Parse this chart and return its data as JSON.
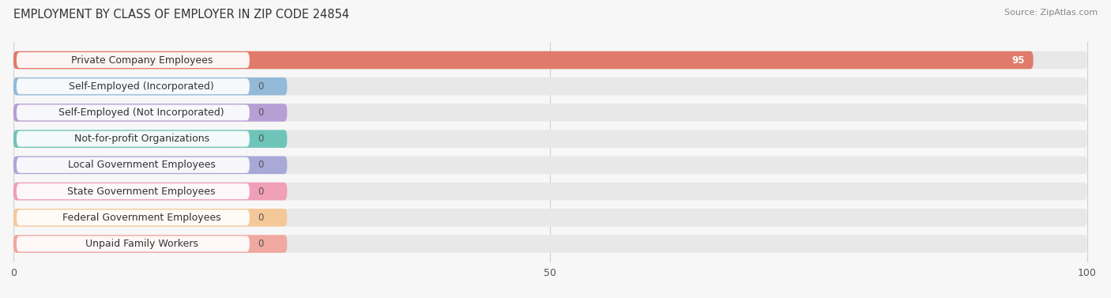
{
  "title": "EMPLOYMENT BY CLASS OF EMPLOYER IN ZIP CODE 24854",
  "source": "Source: ZipAtlas.com",
  "categories": [
    "Private Company Employees",
    "Self-Employed (Incorporated)",
    "Self-Employed (Not Incorporated)",
    "Not-for-profit Organizations",
    "Local Government Employees",
    "State Government Employees",
    "Federal Government Employees",
    "Unpaid Family Workers"
  ],
  "values": [
    95,
    0,
    0,
    0,
    0,
    0,
    0,
    0
  ],
  "bar_colors": [
    "#e07b6b",
    "#93bad9",
    "#b59fd4",
    "#6ec4b8",
    "#a9a9d8",
    "#f09fb8",
    "#f5c89a",
    "#f0a8a0"
  ],
  "xlim": [
    0,
    100
  ],
  "xticks": [
    0,
    50,
    100
  ],
  "background_color": "#f7f7f7",
  "bar_bg_color": "#e8e8e8",
  "title_fontsize": 10.5,
  "source_fontsize": 8,
  "label_fontsize": 9,
  "value_fontsize": 8.5,
  "tick_fontsize": 9
}
